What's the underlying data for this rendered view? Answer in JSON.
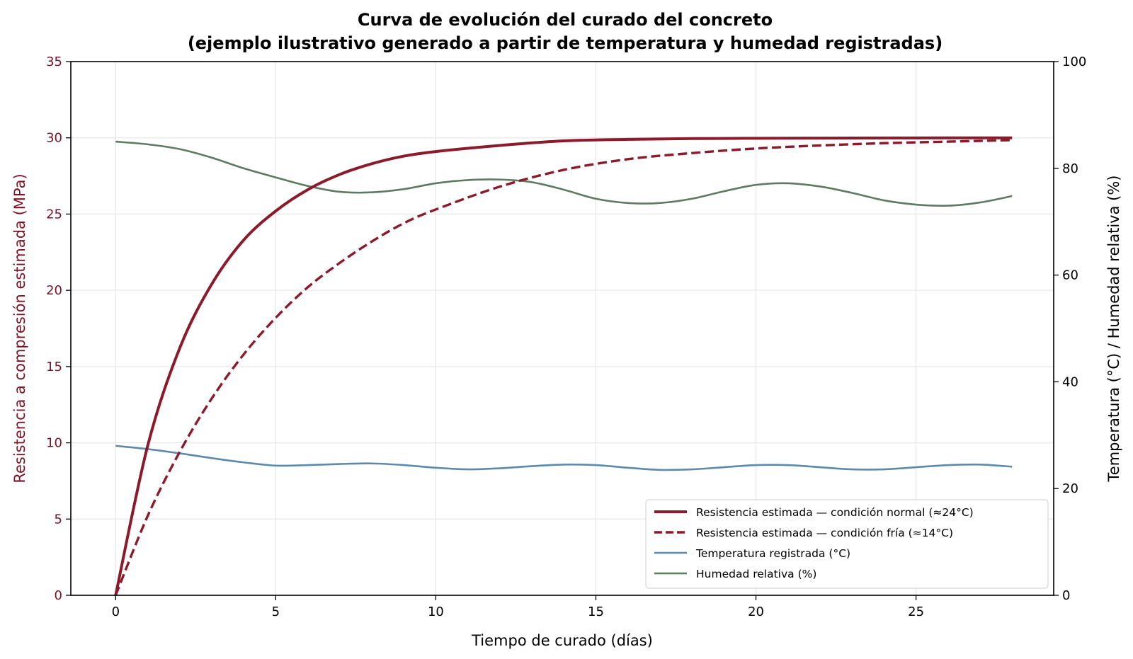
{
  "chart_data": {
    "type": "line",
    "title_lines": [
      "Curva de evolución del curado del concreto",
      "(ejemplo ilustrativo generado a partir de temperatura y humedad registradas)"
    ],
    "xlabel": "Tiempo de curado (días)",
    "ylabel_left": "Resistencia a compresión estimada (MPa)",
    "ylabel_right": "Temperatura (°C) / Humedad relativa (%)",
    "xlim": [
      -1.4,
      29.3
    ],
    "ylim_left": [
      0,
      35
    ],
    "ylim_right": [
      0,
      100
    ],
    "x_ticks": [
      "0",
      "5",
      "10",
      "15",
      "20",
      "25"
    ],
    "y_ticks_left": [
      "0",
      "5",
      "10",
      "15",
      "20",
      "25",
      "30",
      "35"
    ],
    "y_ticks_right": [
      "0",
      "20",
      "40",
      "60",
      "80",
      "100"
    ],
    "grid": true,
    "legend_position": "lower-right",
    "colors": {
      "strength": "#8b1a2b",
      "temperature": "#5b8aad",
      "humidity": "#5f7a62",
      "left_axis": "#7a1526"
    },
    "series": [
      {
        "name": "Resistencia estimada — condición normal (≈24°C)",
        "axis": "left",
        "style": "solid-thick",
        "x": [
          0,
          1,
          2,
          3,
          4,
          5,
          6,
          7,
          8,
          9,
          10,
          12,
          14,
          16,
          18,
          20,
          22,
          24,
          26,
          28
        ],
        "y": [
          0,
          9.8,
          16.2,
          20.4,
          23.3,
          25.2,
          26.6,
          27.6,
          28.3,
          28.8,
          29.1,
          29.5,
          29.8,
          29.9,
          29.95,
          29.97,
          29.98,
          29.99,
          30,
          30
        ]
      },
      {
        "name": "Resistencia estimada — condición fría (≈14°C)",
        "axis": "left",
        "style": "dashed",
        "x": [
          0,
          1,
          2,
          3,
          4,
          5,
          6,
          7,
          8,
          9,
          10,
          12,
          14,
          16,
          18,
          20,
          22,
          24,
          26,
          28
        ],
        "y": [
          0,
          5.2,
          9.4,
          12.9,
          15.8,
          18.2,
          20.2,
          21.8,
          23.2,
          24.4,
          25.3,
          26.8,
          27.9,
          28.6,
          29.0,
          29.3,
          29.5,
          29.65,
          29.75,
          29.85
        ]
      },
      {
        "name": "Temperatura registrada (°C)",
        "axis": "right",
        "style": "solid",
        "x": [
          0,
          1,
          2,
          3,
          4,
          5,
          6,
          7,
          8,
          9,
          10,
          11,
          12,
          13,
          14,
          15,
          16,
          17,
          18,
          19,
          20,
          21,
          22,
          23,
          24,
          25,
          26,
          27,
          28
        ],
        "y": [
          28.0,
          27.4,
          26.6,
          25.7,
          24.9,
          24.3,
          24.4,
          24.6,
          24.7,
          24.4,
          23.9,
          23.6,
          23.8,
          24.2,
          24.5,
          24.4,
          23.9,
          23.5,
          23.6,
          24.0,
          24.4,
          24.4,
          24.0,
          23.6,
          23.6,
          24.0,
          24.4,
          24.5,
          24.1
        ]
      },
      {
        "name": "Humedad relativa (%)",
        "axis": "right",
        "style": "solid",
        "x": [
          0,
          1,
          2,
          3,
          4,
          5,
          6,
          7,
          8,
          9,
          10,
          11,
          12,
          13,
          14,
          15,
          16,
          17,
          18,
          19,
          20,
          21,
          22,
          23,
          24,
          25,
          26,
          27,
          28
        ],
        "y": [
          85.0,
          84.5,
          83.6,
          82.0,
          80.0,
          78.3,
          76.7,
          75.6,
          75.5,
          76.1,
          77.2,
          77.8,
          77.9,
          77.4,
          76.0,
          74.3,
          73.5,
          73.5,
          74.3,
          75.7,
          76.9,
          77.2,
          76.6,
          75.4,
          74.0,
          73.2,
          73.0,
          73.6,
          74.8
        ]
      }
    ]
  }
}
